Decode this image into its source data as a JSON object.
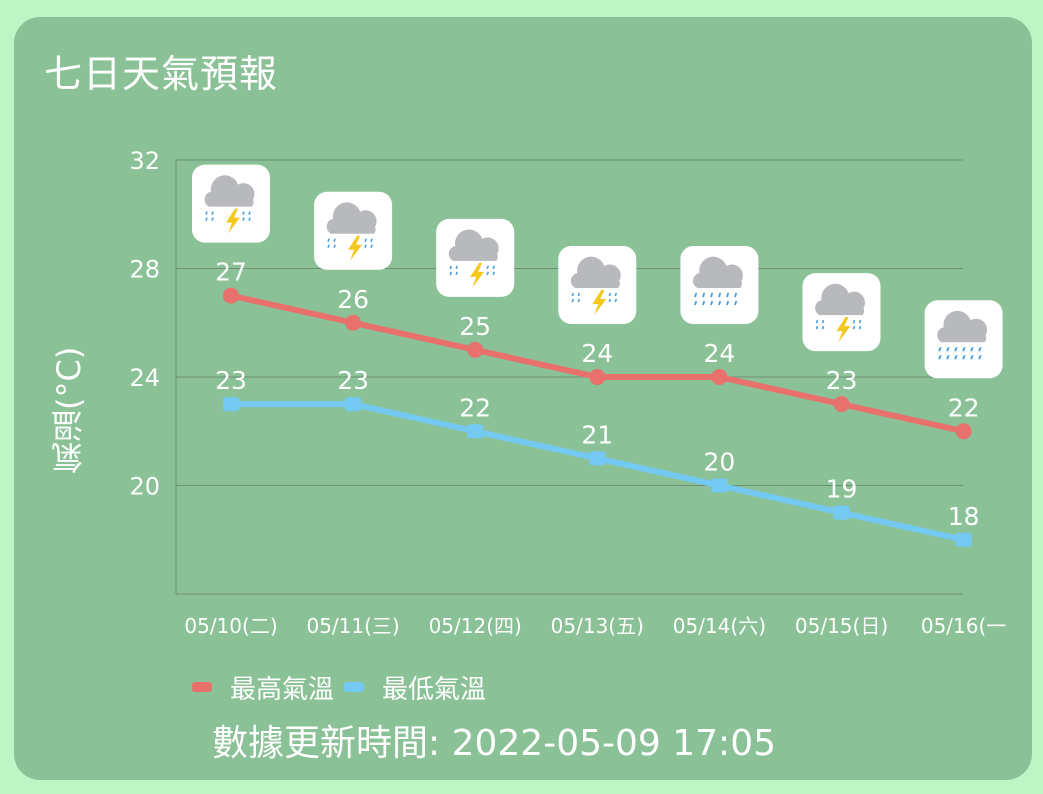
{
  "title": "七日天氣預報",
  "colors": {
    "page_background": "#bdf5c5",
    "card_background": "#8bc196",
    "high_line": "#e8706d",
    "low_line": "#74c9f2",
    "text": "#ffffff"
  },
  "chart_data": {
    "type": "line",
    "ylabel": "氣溫(°C)",
    "xlabel": "",
    "ylim": [
      16,
      32
    ],
    "yticks": [
      20,
      24,
      28,
      32
    ],
    "grid": true,
    "legend_position": "bottom-left",
    "categories": [
      "05/10(二)",
      "05/11(三)",
      "05/12(四)",
      "05/13(五)",
      "05/14(六)",
      "05/15(日)",
      "05/16(一"
    ],
    "series": [
      {
        "name": "最高氣溫",
        "color": "#e8706d",
        "marker": "circle",
        "values": [
          27,
          26,
          25,
          24,
          24,
          23,
          22
        ]
      },
      {
        "name": "最低氣溫",
        "color": "#74c9f2",
        "marker": "square",
        "values": [
          23,
          23,
          22,
          21,
          20,
          19,
          18
        ]
      }
    ],
    "weather_icons": [
      "thunderstorm-icon",
      "thunderstorm-icon",
      "thunderstorm-icon",
      "thunderstorm-icon",
      "rain-icon",
      "thunderstorm-icon",
      "rain-icon"
    ]
  },
  "update": {
    "label": "數據更新時間:",
    "time": "2022-05-09 17:05"
  }
}
